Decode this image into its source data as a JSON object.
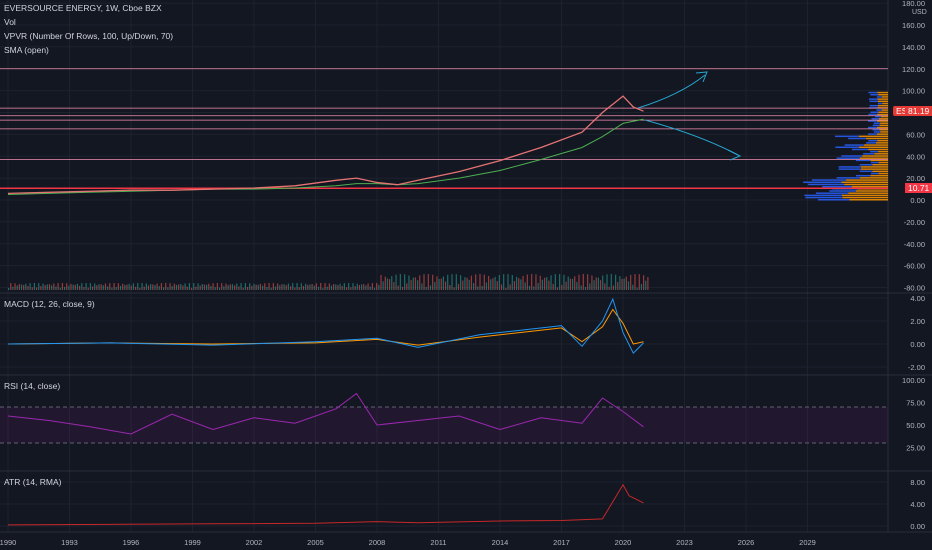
{
  "header": {
    "symbol": "EVERSOURCE ENERGY, 1W, Cboe BZX",
    "studies": [
      "Vol",
      "VPVR (Number Of Rows, 100, Up/Down, 70)",
      "SMA (open)"
    ]
  },
  "currency": "USD",
  "price_badges": {
    "symbol_tag": "ES",
    "last_price": "81.19",
    "low_marker": "10.71"
  },
  "pane_titles": {
    "macd": "MACD (12, 26, close, 9)",
    "rsi": "RSI (14, close)",
    "atr": "ATR (14, RMA)"
  },
  "axes": {
    "price_ticks": [
      "180.00",
      "160.00",
      "140.00",
      "120.00",
      "100.00",
      "80.00",
      "60.00",
      "40.00",
      "20.00",
      "0.00",
      "-20.00",
      "-40.00",
      "-60.00",
      "-80.00"
    ],
    "macd_ticks": [
      "4.00",
      "2.00",
      "0.00",
      "-2.00"
    ],
    "rsi_ticks": [
      "100.00",
      "75.00",
      "50.00",
      "25.00"
    ],
    "atr_ticks": [
      "8.00",
      "4.00",
      "0.00"
    ],
    "time_ticks": [
      "1990",
      "1993",
      "1996",
      "1999",
      "2002",
      "2005",
      "2008",
      "2011",
      "2014",
      "2017",
      "2020",
      "2023",
      "2026",
      "2029"
    ]
  },
  "colors": {
    "background": "#131722",
    "grid": "#1e222d",
    "price_line": "#e57373",
    "sma": "#4caf50",
    "horizontal_levels": "#f48fb1",
    "support_line": "#f23645",
    "annotation_arrows": "#26a6d1",
    "macd_line": "#2196f3",
    "signal_line": "#ff9800",
    "rsi": "#9c27b0",
    "atr": "#c62828",
    "vpvr_up": "#2962ff",
    "vpvr_down": "#ff9800"
  },
  "chart_data": [
    {
      "type": "line",
      "name": "price",
      "x": [
        1990,
        1992,
        1994,
        1996,
        1998,
        2000,
        2002,
        2004,
        2006,
        2007,
        2008,
        2009,
        2010,
        2012,
        2014,
        2016,
        2018,
        2019,
        2020,
        2020.5,
        2021
      ],
      "y": [
        6,
        7,
        8,
        9,
        9,
        10,
        11,
        13,
        18,
        20,
        16,
        14,
        18,
        26,
        36,
        48,
        62,
        80,
        95,
        85,
        81.19
      ],
      "sma": [
        5,
        6,
        7,
        8,
        9,
        10,
        10,
        11,
        13,
        15,
        15,
        14,
        15,
        20,
        27,
        37,
        48,
        58,
        70,
        72,
        74
      ],
      "levels": [
        120,
        84,
        77,
        73,
        65,
        37,
        10.71
      ],
      "ylim": [
        -85,
        180
      ]
    },
    {
      "type": "line",
      "name": "MACD (12, 26, close, 9)",
      "x": [
        1990,
        1995,
        2000,
        2005,
        2008,
        2010,
        2013,
        2015,
        2017,
        2018,
        2019,
        2019.5,
        2020,
        2020.5,
        2021
      ],
      "macd": [
        0,
        0.1,
        -0.1,
        0.2,
        0.5,
        -0.3,
        0.8,
        1.2,
        1.6,
        -0.2,
        2,
        3.9,
        1,
        -0.8,
        0.1
      ],
      "signal": [
        0,
        0.1,
        0,
        0.1,
        0.4,
        -0.1,
        0.6,
        1,
        1.4,
        0.2,
        1.5,
        3,
        1.8,
        0,
        0.2
      ],
      "ylim": [
        -2,
        4
      ]
    },
    {
      "type": "line",
      "name": "RSI (14, close)",
      "x": [
        1990,
        1992,
        1994,
        1996,
        1998,
        2000,
        2002,
        2004,
        2006,
        2007,
        2008,
        2010,
        2012,
        2014,
        2016,
        2018,
        2019,
        2020,
        2021
      ],
      "y": [
        60,
        55,
        48,
        40,
        62,
        45,
        58,
        52,
        68,
        85,
        50,
        55,
        60,
        45,
        58,
        52,
        80,
        65,
        48
      ],
      "bands": [
        70,
        30
      ],
      "ylim": [
        0,
        100
      ]
    },
    {
      "type": "line",
      "name": "ATR (14, RMA)",
      "x": [
        1990,
        1995,
        2000,
        2005,
        2008,
        2010,
        2014,
        2017,
        2019,
        2020,
        2020.3,
        2021
      ],
      "y": [
        0.2,
        0.3,
        0.4,
        0.5,
        0.8,
        0.6,
        0.9,
        1.0,
        1.3,
        7.5,
        5.5,
        4.2
      ],
      "ylim": [
        0,
        9
      ]
    }
  ]
}
